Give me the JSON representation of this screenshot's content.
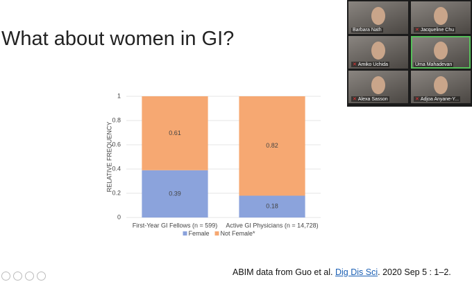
{
  "slide": {
    "title": "What about women in GI?",
    "citation": {
      "prefix": "ABIM data from Guo et al.",
      "link": "Dig Dis Sci",
      "suffix": ". 2020 Sep 5 : 1–2."
    }
  },
  "chart_data": {
    "type": "stacked-bar",
    "ylabel": "RELATIVE FREQUENCY",
    "categories": [
      "First-Year GI Fellows (n = 599)",
      "Active GI Physicians (n = 14,728)"
    ],
    "series": [
      {
        "name": "Female",
        "color": "#8ba3dc",
        "values": [
          0.39,
          0.18
        ]
      },
      {
        "name": "Not Female*",
        "color": "#f6a872",
        "values": [
          0.61,
          0.82
        ]
      }
    ],
    "ylim": [
      0,
      1
    ],
    "yticks": [
      0,
      0.2,
      0.4,
      0.6,
      0.8,
      1
    ],
    "grid": true,
    "legend": "bottom"
  },
  "participants": [
    "Barbara Nath",
    "Jacqueline Chu",
    "Amiko Uchida",
    "Uma Mahadevan",
    "Alexa Sasson",
    "Adjoa Anyane-Y..."
  ]
}
